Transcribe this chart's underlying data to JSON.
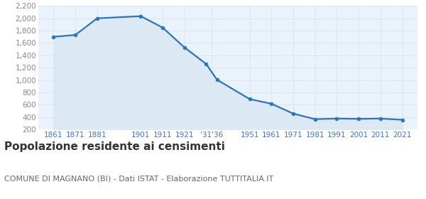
{
  "years": [
    1861,
    1871,
    1881,
    1901,
    1911,
    1921,
    1931,
    1936,
    1951,
    1961,
    1971,
    1981,
    1991,
    2001,
    2011,
    2021
  ],
  "population": [
    1700,
    1730,
    2000,
    2035,
    1850,
    1530,
    1260,
    1005,
    690,
    615,
    455,
    365,
    375,
    370,
    375,
    355
  ],
  "ylim": [
    200,
    2200
  ],
  "yticks": [
    200,
    400,
    600,
    800,
    1000,
    1200,
    1400,
    1600,
    1800,
    2000,
    2200
  ],
  "xlim_min": 1854,
  "xlim_max": 2028,
  "x_tick_positions": [
    1861,
    1871,
    1881,
    1901,
    1911,
    1921,
    1933.5,
    1951,
    1961,
    1971,
    1981,
    1991,
    2001,
    2011,
    2021
  ],
  "x_tick_labels": [
    "1861",
    "1871",
    "1881",
    "1901",
    "1911",
    "1921",
    "'31'36",
    "1951",
    "1961",
    "1971",
    "1981",
    "1991",
    "2001",
    "2011",
    "2021"
  ],
  "line_color": "#2e75b6",
  "fill_color": "#dce9f5",
  "marker_size": 3.5,
  "line_width": 1.6,
  "grid_color": "#c8d8e8",
  "grid_linestyle": "--",
  "background_color": "#eaf3fb",
  "ytick_color": "#888888",
  "xtick_color": "#4472c4",
  "title": "Popolazione residente ai censimenti",
  "subtitle": "COMUNE DI MAGNANO (BI) - Dati ISTAT - Elaborazione TUTTITALIA.IT",
  "title_fontsize": 11,
  "subtitle_fontsize": 8,
  "title_color": "#333333",
  "subtitle_color": "#666666",
  "title_bold": true
}
